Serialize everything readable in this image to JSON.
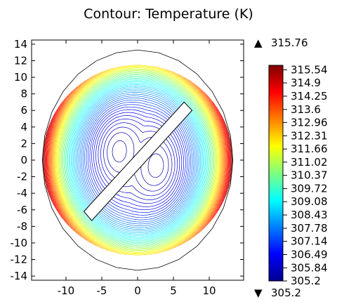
{
  "chart_data": {
    "type": "contour",
    "title": "Contour: Temperature (K)",
    "xlabel": "",
    "ylabel": "",
    "xlim": [
      -14.8,
      14.8
    ],
    "ylim": [
      -14.5,
      14.5
    ],
    "x_ticks": [
      -10,
      -5,
      0,
      5,
      10
    ],
    "y_ticks": [
      14,
      12,
      10,
      8,
      6,
      4,
      2,
      0,
      -2,
      -4,
      -6,
      -8,
      -10,
      -12,
      -14
    ],
    "grid": false,
    "domain": {
      "shape": "circle",
      "center": [
        0,
        0
      ],
      "radius": 13.3
    },
    "obstacle": {
      "shape": "rectangle",
      "corners": [
        [
          -7.5,
          -6.2
        ],
        [
          6.5,
          7.0
        ],
        [
          7.6,
          6.0
        ],
        [
          -6.4,
          -7.3
        ]
      ]
    },
    "cold_spots": [
      {
        "x": -3.2,
        "y": 1.6,
        "value": 305.2
      },
      {
        "x": 3.2,
        "y": -1.0,
        "value": 305.3
      }
    ],
    "field_range": [
      305.2,
      315.76
    ],
    "colorbar": {
      "max_label": "315.76",
      "min_label": "305.2",
      "max_marker": "▲",
      "min_marker": "▼",
      "ticks": [
        "315.54",
        "314.9",
        "314.25",
        "313.6",
        "312.96",
        "312.31",
        "311.66",
        "311.02",
        "310.37",
        "309.72",
        "309.08",
        "308.43",
        "307.78",
        "307.14",
        "306.49",
        "305.84",
        "305.2"
      ],
      "colormap": [
        "#00008f",
        "#0000ff",
        "#007fff",
        "#00ffff",
        "#7fff7f",
        "#ffff00",
        "#ff7f00",
        "#ff0000",
        "#7f0000"
      ]
    }
  }
}
